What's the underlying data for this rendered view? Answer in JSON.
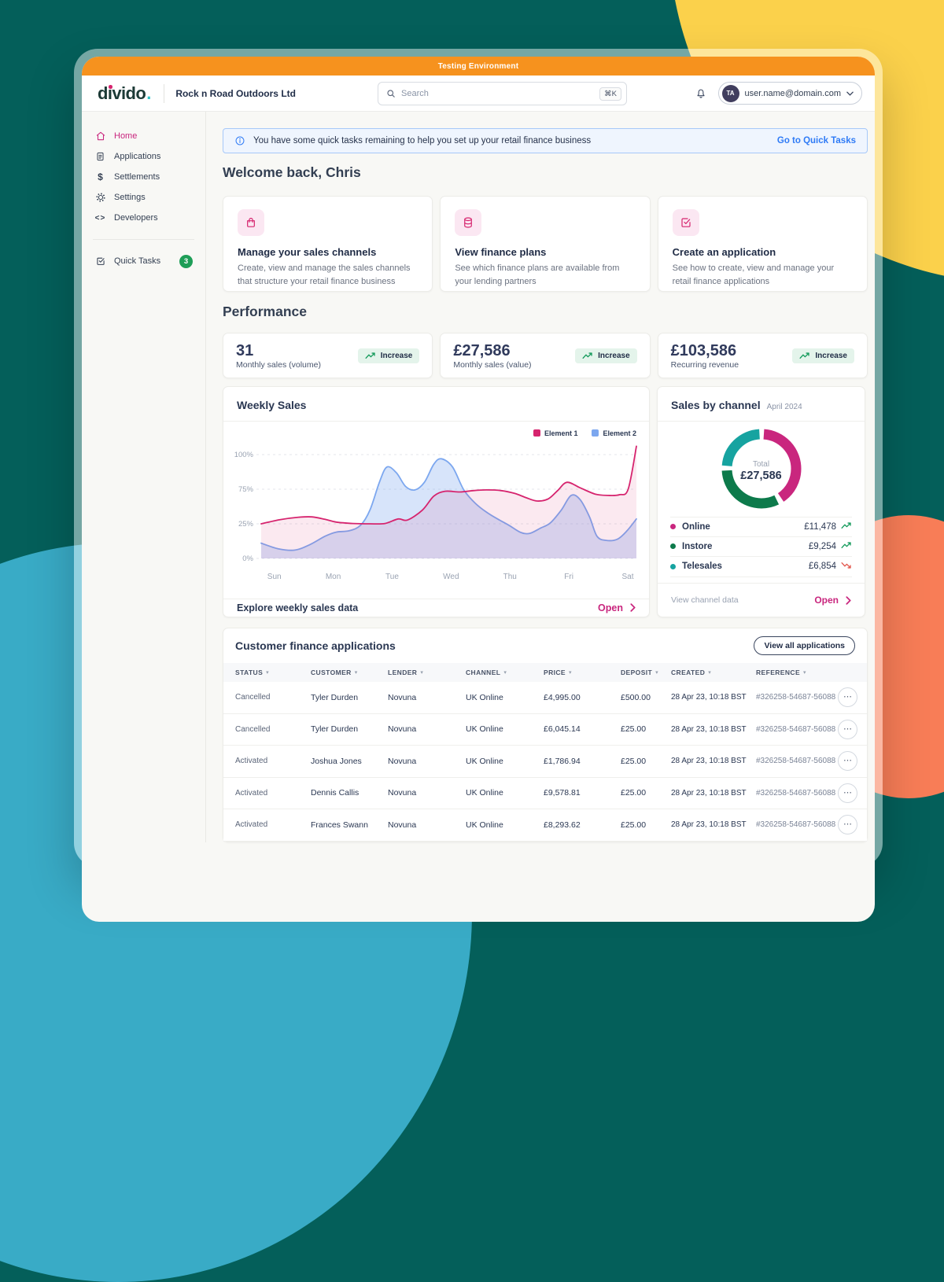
{
  "env_banner": "Testing Environment",
  "brand": {
    "logo_text": "divido",
    "logo_dot": ".",
    "company": "Rock n Road Outdoors Ltd"
  },
  "search": {
    "placeholder": "Search",
    "shortcut": "⌘K",
    "icon": "search-icon"
  },
  "user": {
    "initials": "TA",
    "email": "user.name@domain.com"
  },
  "sidebar": {
    "items": [
      {
        "label": "Home",
        "icon": "home-icon",
        "active": true
      },
      {
        "label": "Applications",
        "icon": "document-icon",
        "active": false
      },
      {
        "label": "Settlements",
        "icon": "dollar-icon",
        "active": false
      },
      {
        "label": "Settings",
        "icon": "gear-icon",
        "active": false
      },
      {
        "label": "Developers",
        "icon": "code-icon",
        "active": false
      }
    ],
    "quick_tasks": {
      "label": "Quick Tasks",
      "icon": "checkbox-icon",
      "badge": "3"
    }
  },
  "banner": {
    "icon": "info-icon",
    "text": "You have some quick tasks remaining to help you set up your retail finance business",
    "link": "Go to Quick Tasks"
  },
  "welcome_heading": "Welcome back, Chris",
  "quick_cards": [
    {
      "icon": "shopping-bag-icon",
      "title": "Manage your sales channels",
      "description": "Create, view and manage the sales channels that structure your retail finance business"
    },
    {
      "icon": "database-icon",
      "title": "View finance plans",
      "description": "See which finance plans are available from your lending partners"
    },
    {
      "icon": "check-square-icon",
      "title": "Create an application",
      "description": "See how to create, view and manage your retail finance applications"
    }
  ],
  "performance": {
    "heading": "Performance",
    "stats": [
      {
        "value": "31",
        "label": "Monthly sales (volume)",
        "badge": "Increase",
        "badge_icon": "trending-up-icon"
      },
      {
        "value": "£27,586",
        "label": "Monthly sales (value)",
        "badge": "Increase",
        "badge_icon": "trending-up-icon"
      },
      {
        "value": "£103,586",
        "label": "Recurring revenue",
        "badge": "Increase",
        "badge_icon": "trending-up-icon"
      }
    ]
  },
  "weekly_card": {
    "title": "Weekly Sales",
    "footer_label": "Explore weekly sales data",
    "footer_action": "Open",
    "footer_icon": "chevron-right-icon"
  },
  "channel_card": {
    "title": "Sales by channel",
    "period": "April 2024",
    "footer_label": "View channel data",
    "footer_action": "Open",
    "footer_icon": "chevron-right-icon"
  },
  "applications": {
    "title": "Customer finance applications",
    "button": "View all applications",
    "columns": [
      "STATUS",
      "CUSTOMER",
      "LENDER",
      "CHANNEL",
      "PRICE",
      "DEPOSIT",
      "CREATED",
      "REFERENCE"
    ],
    "sort_icon": "sort-caret-icon",
    "row_menu_icon": "ellipsis-icon",
    "rows": [
      {
        "status": "Cancelled",
        "customer": "Tyler Durden",
        "lender": "Novuna",
        "channel": "UK Online",
        "price": "£4,995.00",
        "deposit": "£500.00",
        "created": "28 Apr 23, 10:18 BST",
        "reference": "#326258-54687-56088"
      },
      {
        "status": "Cancelled",
        "customer": "Tyler Durden",
        "lender": "Novuna",
        "channel": "UK Online",
        "price": "£6,045.14",
        "deposit": "£25.00",
        "created": "28 Apr 23, 10:18 BST",
        "reference": "#326258-54687-56088"
      },
      {
        "status": "Activated",
        "customer": "Joshua Jones",
        "lender": "Novuna",
        "channel": "UK Online",
        "price": "£1,786.94",
        "deposit": "£25.00",
        "created": "28 Apr 23, 10:18 BST",
        "reference": "#326258-54687-56088"
      },
      {
        "status": "Activated",
        "customer": "Dennis Callis",
        "lender": "Novuna",
        "channel": "UK Online",
        "price": "£9,578.81",
        "deposit": "£25.00",
        "created": "28 Apr 23, 10:18 BST",
        "reference": "#326258-54687-56088"
      },
      {
        "status": "Activated",
        "customer": "Frances Swann",
        "lender": "Novuna",
        "channel": "UK Online",
        "price": "£8,293.62",
        "deposit": "£25.00",
        "created": "28 Apr 23, 10:18 BST",
        "reference": "#326258-54687-56088"
      }
    ]
  },
  "chart_data": [
    {
      "type": "area",
      "title": "Weekly Sales",
      "categories": [
        "Sun",
        "Mon",
        "Tue",
        "Wed",
        "Thu",
        "Fri",
        "Sat"
      ],
      "yticks": [
        "100%",
        "75%",
        "25%",
        "0%"
      ],
      "ylim": [
        0,
        100
      ],
      "grid": "dashed-horizontal",
      "legend_position": "top-right",
      "x_unit": "fraction of week, Sun=0 to Sat=1",
      "series": [
        {
          "name": "Element 1",
          "color": "#D6246E",
          "fill": "rgba(214,36,110,0.10)",
          "x": [
            0,
            0.05,
            0.1,
            0.135,
            0.17,
            0.2,
            0.245,
            0.29,
            0.33,
            0.365,
            0.39,
            0.43,
            0.46,
            0.49,
            0.53,
            0.565,
            0.6,
            0.64,
            0.675,
            0.705,
            0.735,
            0.765,
            0.79,
            0.815,
            0.85,
            0.89,
            0.925,
            0.955,
            0.978,
            1.0
          ],
          "y": [
            25,
            31,
            34.5,
            35,
            31.5,
            27.5,
            25.5,
            25,
            25.5,
            32,
            30.5,
            45,
            65,
            72,
            71,
            73,
            74,
            73,
            69,
            63,
            58,
            61,
            73,
            80,
            76,
            68,
            66,
            67,
            75,
            106
          ]
        },
        {
          "name": "Element 2",
          "color": "#7CA7EF",
          "fill": "rgba(124,167,239,0.30)",
          "x": [
            0,
            0.045,
            0.09,
            0.13,
            0.17,
            0.2,
            0.235,
            0.265,
            0.29,
            0.315,
            0.335,
            0.36,
            0.385,
            0.41,
            0.435,
            0.46,
            0.48,
            0.51,
            0.54,
            0.57,
            0.6,
            0.63,
            0.66,
            0.69,
            0.715,
            0.745,
            0.77,
            0.8,
            0.826,
            0.85,
            0.875,
            0.895,
            0.92,
            0.95,
            0.975,
            1.0
          ],
          "y": [
            11,
            7,
            6,
            10,
            16,
            19,
            20,
            24,
            45,
            80,
            91,
            87,
            77,
            74,
            80,
            93,
            97,
            91,
            74,
            55,
            42,
            32,
            24,
            19,
            18,
            22,
            26,
            45,
            66,
            60,
            35,
            16,
            13,
            14,
            20,
            32
          ]
        }
      ]
    },
    {
      "type": "donut",
      "title": "Sales by channel",
      "period": "April 2024",
      "center_label": "Total",
      "center_value": "£27,586",
      "total": 27586,
      "segments": [
        {
          "label": "Online",
          "value": 11478,
          "display": "£11,478",
          "color": "#C9267E",
          "trend": "up"
        },
        {
          "label": "Instore",
          "value": 9254,
          "display": "£9,254",
          "color": "#0D7A4B",
          "trend": "up"
        },
        {
          "label": "Telesales",
          "value": 6854,
          "display": "£6,854",
          "color": "#16A3A0",
          "trend": "down"
        }
      ],
      "trend_colors": {
        "up": "#149A5B",
        "down": "#E2574C"
      }
    }
  ],
  "colors": {
    "background_teal": "#045F5A",
    "blob_yellow": "#FBD14B",
    "blob_coral": "#F87D57",
    "blob_blue": "#39ABC6",
    "env_orange": "#F6921E",
    "accent_pink": "#C9267E",
    "link_blue": "#2F7BF6",
    "badge_green_bg": "#E4F4EB",
    "badge_green": "#149A5B"
  }
}
